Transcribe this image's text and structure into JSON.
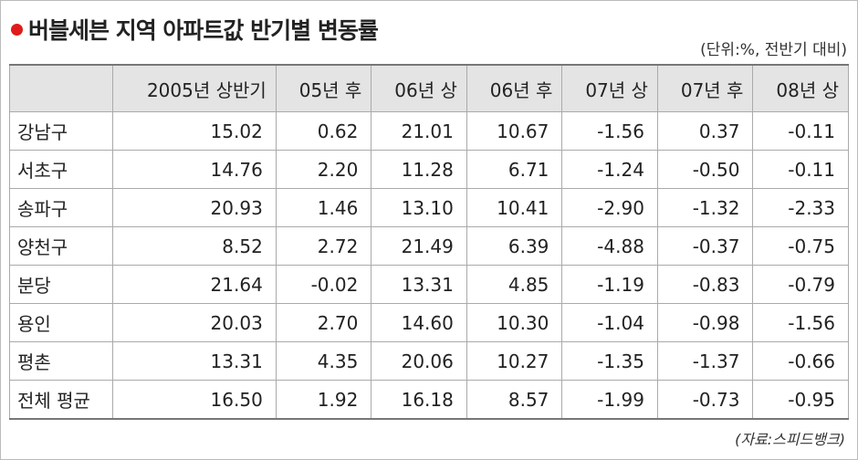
{
  "header": {
    "title": "버블세븐 지역 아파트값 반기별 변동률",
    "unit": "(단위:%, 전반기 대비)"
  },
  "table": {
    "columns": [
      "2005년 상반기",
      "05년 후",
      "06년 상",
      "06년 후",
      "07년 상",
      "07년 후",
      "08년 상"
    ],
    "rows": [
      [
        "강남구",
        "15.02",
        "0.62",
        "21.01",
        "10.67",
        "-1.56",
        "0.37",
        "-0.11"
      ],
      [
        "서초구",
        "14.76",
        "2.20",
        "11.28",
        "6.71",
        "-1.24",
        "-0.50",
        "-0.11"
      ],
      [
        "송파구",
        "20.93",
        "1.46",
        "13.10",
        "10.41",
        "-2.90",
        "-1.32",
        "-2.33"
      ],
      [
        "양천구",
        "8.52",
        "2.72",
        "21.49",
        "6.39",
        "-4.88",
        "-0.37",
        "-0.75"
      ],
      [
        "분당",
        "21.64",
        "-0.02",
        "13.31",
        "4.85",
        "-1.19",
        "-0.83",
        "-0.79"
      ],
      [
        "용인",
        "20.03",
        "2.70",
        "14.60",
        "10.30",
        "-1.04",
        "-0.98",
        "-1.56"
      ],
      [
        "평촌",
        "13.31",
        "4.35",
        "20.06",
        "10.27",
        "-1.35",
        "-1.37",
        "-0.66"
      ],
      [
        "전체 평균",
        "16.50",
        "1.92",
        "16.18",
        "8.57",
        "-1.99",
        "-0.73",
        "-0.95"
      ]
    ]
  },
  "source": "(자료:스피드뱅크)"
}
